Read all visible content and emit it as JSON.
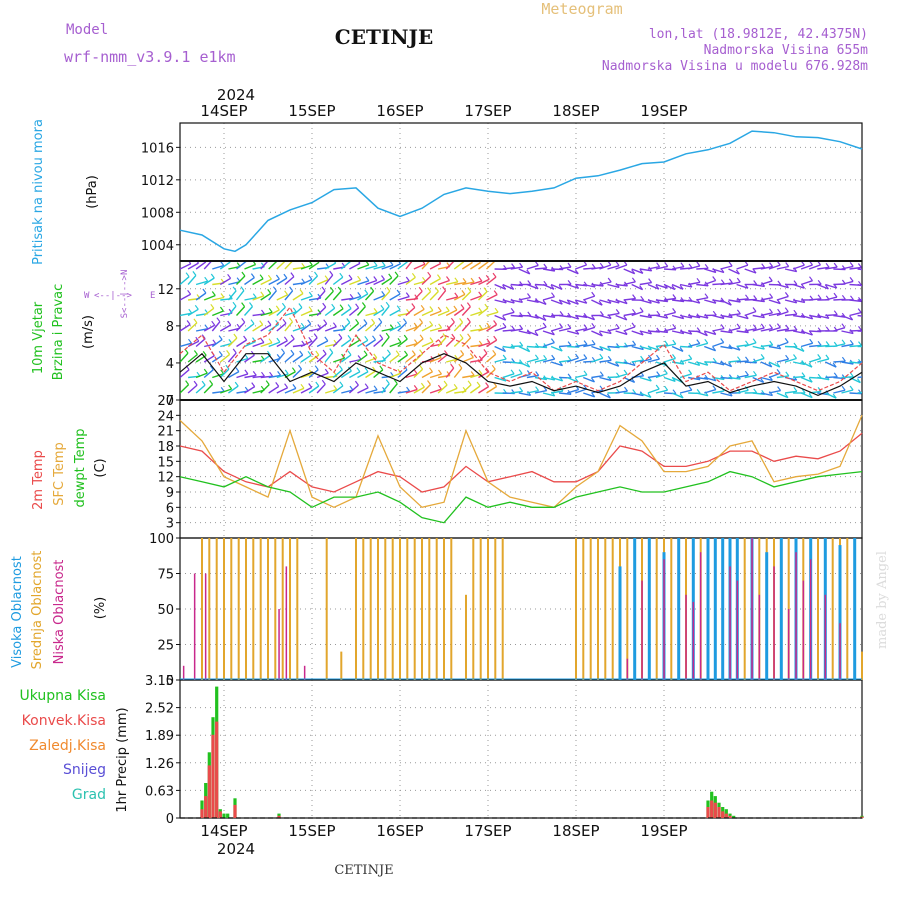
{
  "header": {
    "model_label": "Model",
    "model_name": "wrf-nmm_v3.9.1 e1km",
    "station": "CETINJE",
    "product": "Meteogram",
    "coords": "lon,lat (18.9812E, 42.4375N)",
    "elevation": "Nadmorska Visina 655m",
    "model_elevation": "Nadmorska Visina u modelu 676.928m",
    "footer_station": "CETINJE",
    "watermark": "made by Angel",
    "year": "2024"
  },
  "colors": {
    "pressure": "#2aa7e4",
    "wind_label": "#21c11f",
    "temp2m": "#ea4b4b",
    "sfc_temp": "#e5a93b",
    "dewpt": "#21c11f",
    "high_cloud": "#1e9be0",
    "mid_cloud": "#e2a62c",
    "low_cloud": "#c8288c",
    "purple": "#a65fd0",
    "grid": "#999999"
  },
  "days": [
    "14SEP",
    "15SEP",
    "16SEP",
    "17SEP",
    "18SEP",
    "19SEP"
  ],
  "panels": {
    "pressure": {
      "label_main": "Pritisak na nivou mora",
      "unit": "(hPa)",
      "ticks": [
        "1004",
        "1008",
        "1012",
        "1016"
      ]
    },
    "wind": {
      "label1": "10m Vjetar",
      "label2": "Brzina i Pravac",
      "unit": "(m/s)",
      "ticks": [
        "0",
        "4",
        "8",
        "12"
      ],
      "compass_w": "W",
      "compass_e": "E",
      "compass_arrow": "<--|-->",
      "compass_ns": "S<--|-->N"
    },
    "temperature": {
      "label1": "2m Temp",
      "label2": "SFC Temp",
      "label3": "dewpt Temp",
      "unit": "(C)",
      "ticks": [
        "3",
        "6",
        "9",
        "12",
        "15",
        "18",
        "21",
        "24",
        "27"
      ]
    },
    "cloud": {
      "label1": "Visoka Oblacnost",
      "label2": "Srednja Oblacnost",
      "label3": "Niska Oblacnost",
      "unit": "(%)",
      "ticks": [
        "0",
        "25",
        "50",
        "75",
        "100"
      ]
    },
    "precip": {
      "label_unit": "1hr Precip (mm)",
      "ticks": [
        "0",
        "0.63",
        "1.26",
        "1.89",
        "2.52",
        "3.15"
      ],
      "legend": [
        "Ukupna Kisa",
        "Konvek.Kisa",
        "Zaledj.Kisa",
        "Snijeg",
        "Grad"
      ],
      "legend_colors": [
        "#21c11f",
        "#ea4b4b",
        "#f08a2e",
        "#5a4fd6",
        "#2cc2b0"
      ]
    }
  },
  "chart_data": [
    {
      "type": "line",
      "name": "pressure",
      "x_unit": "hours since 13SEP 12UTC",
      "ylim": [
        1002,
        1019
      ],
      "x": [
        0,
        6,
        12,
        15,
        18,
        21,
        24,
        30,
        36,
        42,
        48,
        54,
        60,
        66,
        72,
        78,
        84,
        90,
        96,
        102,
        108,
        114,
        120,
        126,
        132,
        138,
        144,
        150,
        156,
        162,
        168,
        174,
        180,
        186
      ],
      "values": [
        1005.8,
        1005.2,
        1003.5,
        1003.2,
        1004.0,
        1005.5,
        1007.0,
        1008.3,
        1009.2,
        1010.8,
        1011.0,
        1008.5,
        1007.5,
        1008.5,
        1010.2,
        1011.0,
        1010.6,
        1010.3,
        1010.6,
        1011.0,
        1012.2,
        1012.5,
        1013.2,
        1014.0,
        1014.2,
        1015.2,
        1015.7,
        1016.5,
        1018.0,
        1017.8,
        1017.3,
        1017.2,
        1016.7,
        1015.8
      ]
    },
    {
      "type": "line",
      "name": "wind",
      "x_unit": "hours since 13SEP 12UTC",
      "ylim": [
        0,
        15
      ],
      "x": [
        0,
        6,
        12,
        18,
        24,
        30,
        36,
        42,
        48,
        54,
        60,
        66,
        72,
        78,
        84,
        90,
        96,
        102,
        108,
        114,
        120,
        126,
        132,
        138,
        144,
        150,
        156,
        162,
        168,
        174,
        180,
        186
      ],
      "series": [
        {
          "name": "gust",
          "values": [
            5,
            7,
            3,
            6,
            7,
            10,
            5,
            3,
            7,
            4,
            3,
            5,
            7,
            6,
            3,
            2,
            3,
            1,
            2,
            1,
            2,
            4,
            6,
            2,
            3,
            1,
            2,
            3,
            2,
            1,
            2,
            4
          ]
        },
        {
          "name": "speed",
          "values": [
            3,
            5,
            2,
            5,
            5,
            2,
            3,
            2,
            4,
            3,
            2,
            4,
            5,
            4,
            2,
            1.5,
            2,
            1,
            1.5,
            0.8,
            1.5,
            3,
            4,
            1.5,
            2,
            0.8,
            1.5,
            2,
            1.5,
            0.5,
            1.5,
            3
          ]
        }
      ]
    },
    {
      "type": "line",
      "name": "temperature",
      "x_unit": "hours since 13SEP 12UTC",
      "ylim": [
        0,
        27
      ],
      "x": [
        0,
        6,
        12,
        18,
        24,
        30,
        36,
        42,
        48,
        54,
        60,
        66,
        72,
        78,
        84,
        90,
        96,
        102,
        108,
        114,
        120,
        126,
        132,
        138,
        144,
        150,
        156,
        162,
        168,
        174,
        180,
        186
      ],
      "series": [
        {
          "name": "2m Temp",
          "values": [
            18,
            17,
            13,
            11,
            10,
            13,
            10,
            9,
            11,
            13,
            12,
            9,
            10,
            14,
            11,
            12,
            13,
            11,
            11,
            13,
            18,
            17,
            14,
            14,
            15,
            17,
            17,
            15,
            16,
            15.5,
            17,
            20.5
          ]
        },
        {
          "name": "SFC Temp",
          "values": [
            23,
            19,
            12,
            10,
            8,
            21,
            8,
            6,
            8,
            20,
            10,
            6,
            7,
            21,
            11,
            8,
            7,
            6,
            10,
            13,
            22,
            19,
            13,
            13,
            14,
            18,
            19,
            11,
            12,
            12.5,
            14,
            24
          ]
        },
        {
          "name": "dewpt Temp",
          "values": [
            12,
            11,
            10,
            12,
            10,
            9,
            6,
            8,
            8,
            9,
            7,
            4,
            3,
            8,
            6,
            7,
            6,
            6,
            8,
            9,
            10,
            9,
            9,
            10,
            11,
            13,
            12,
            10,
            11,
            12,
            12.5,
            13
          ]
        }
      ]
    },
    {
      "type": "bar",
      "name": "cloud",
      "x_unit": "hours since 13SEP 12UTC",
      "ylim": [
        0,
        100
      ],
      "series": [
        {
          "name": "Visoka Oblacnost",
          "x": [
            120,
            124,
            128,
            132,
            136,
            140,
            144,
            146,
            148,
            150,
            152,
            156,
            160,
            164,
            168,
            172,
            176,
            180,
            184
          ],
          "values": [
            80,
            100,
            100,
            90,
            100,
            100,
            100,
            100,
            100,
            100,
            100,
            100,
            90,
            100,
            100,
            100,
            100,
            95,
            100
          ]
        },
        {
          "name": "Srednja Oblacnost",
          "x": [
            6,
            8,
            10,
            12,
            14,
            16,
            18,
            20,
            22,
            24,
            26,
            28,
            30,
            32,
            40,
            44,
            48,
            50,
            52,
            54,
            56,
            58,
            60,
            62,
            64,
            66,
            68,
            70,
            72,
            74,
            78,
            80,
            82,
            84,
            86,
            88,
            108,
            110,
            112,
            114,
            116,
            118,
            120,
            122,
            124,
            126,
            128,
            130,
            132,
            134,
            136,
            138,
            140,
            142,
            144,
            146,
            148,
            150,
            152,
            154,
            156,
            158,
            160,
            162,
            164,
            166,
            168,
            170,
            172,
            174,
            176,
            178,
            180,
            182,
            184,
            186
          ],
          "values": [
            100,
            100,
            100,
            100,
            100,
            100,
            100,
            100,
            100,
            100,
            100,
            100,
            100,
            100,
            100,
            20,
            100,
            100,
            100,
            100,
            100,
            100,
            100,
            100,
            100,
            100,
            100,
            100,
            100,
            100,
            60,
            100,
            100,
            100,
            100,
            100,
            100,
            100,
            100,
            100,
            100,
            100,
            100,
            100,
            100,
            100,
            100,
            100,
            100,
            100,
            100,
            100,
            100,
            100,
            100,
            100,
            100,
            100,
            100,
            100,
            100,
            100,
            100,
            100,
            100,
            100,
            100,
            100,
            100,
            100,
            100,
            100,
            100,
            100,
            100,
            20
          ]
        },
        {
          "name": "Niska Oblacnost",
          "x": [
            1,
            4,
            7,
            27,
            29,
            34,
            122,
            126,
            132,
            138,
            140,
            142,
            150,
            152,
            156,
            158,
            162,
            166,
            168,
            170,
            172,
            176,
            180
          ],
          "values": [
            10,
            75,
            75,
            50,
            80,
            10,
            15,
            70,
            85,
            60,
            55,
            90,
            80,
            70,
            100,
            60,
            80,
            50,
            90,
            70,
            85,
            60,
            40
          ]
        }
      ]
    },
    {
      "type": "bar",
      "name": "precip",
      "x_unit": "hours since 13SEP 12UTC",
      "ylim": [
        0,
        3.15
      ],
      "series": [
        {
          "name": "Ukupna Kisa",
          "x": [
            6,
            7,
            8,
            9,
            10,
            11,
            12,
            13,
            14,
            15,
            16,
            27,
            144,
            145,
            146,
            147,
            148,
            149,
            150,
            151,
            186
          ],
          "values": [
            0.4,
            0.8,
            1.5,
            2.3,
            3.0,
            0.2,
            0.1,
            0.1,
            0.0,
            0.45,
            0.0,
            0.1,
            0.4,
            0.6,
            0.5,
            0.35,
            0.25,
            0.2,
            0.1,
            0.05,
            0.05
          ]
        },
        {
          "name": "Konvek.Kisa",
          "x": [
            6,
            7,
            8,
            9,
            10,
            11,
            15,
            27,
            144,
            145,
            146,
            147,
            148,
            149,
            150,
            186
          ],
          "values": [
            0.2,
            0.5,
            1.2,
            1.9,
            2.2,
            0.15,
            0.3,
            0.05,
            0.25,
            0.4,
            0.35,
            0.25,
            0.15,
            0.1,
            0.05,
            0.03
          ]
        }
      ]
    }
  ]
}
